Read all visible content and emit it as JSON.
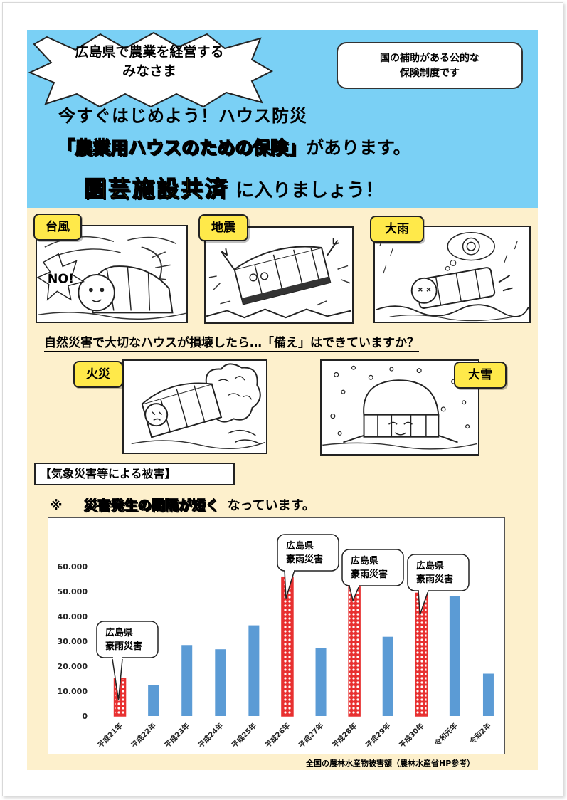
{
  "header": {
    "starburst_line1": "広島県で農業を経営する",
    "starburst_line2": "みなさま",
    "note_line1": "国の補助がある公的な",
    "note_line2": "保険制度です",
    "headline1": "今すぐはじめよう！ハウス防災",
    "headline2_highlight": "「農業用ハウスのための保険」",
    "headline2_rest": "があります。",
    "headline3_highlight": "園芸施設共済",
    "headline3_rest": "に入りましょう！"
  },
  "disasters": {
    "typhoon": "台風",
    "typhoon_no": "NO!",
    "earthquake": "地震",
    "heavy_rain": "大雨",
    "fire": "火災",
    "heavy_snow": "大雪"
  },
  "question": "自然災害で大切なハウスが損壊したら…「備え」はできていますか？",
  "section_label": "【気象災害等による被害】",
  "interval": {
    "mark": "※",
    "highlight": "災害発生の間隔が短く",
    "rest": "なっています。"
  },
  "chart_data": {
    "type": "bar",
    "categories": [
      "平成21年",
      "平成22年",
      "平成23年",
      "平成24年",
      "平成25年",
      "平成26年",
      "平成27年",
      "平成28年",
      "平成29年",
      "平成30年",
      "令和元年",
      "令和2年"
    ],
    "values": [
      15000,
      12500,
      28500,
      26800,
      36400,
      55800,
      27300,
      55000,
      31800,
      49300,
      48200,
      17000
    ],
    "highlighted": [
      true,
      false,
      false,
      false,
      false,
      true,
      false,
      true,
      false,
      true,
      false,
      false
    ],
    "yticks": [
      "0",
      "10.000",
      "20.000",
      "30.000",
      "40.000",
      "50.000",
      "60.000"
    ],
    "ylim": [
      0,
      60000
    ],
    "annotation_line1": "広島県",
    "annotation_line2": "豪雨災害",
    "colors": {
      "normal": "#5b9bd5",
      "highlight": "#e83030"
    }
  },
  "source": "全国の農林水産物被害額（農林水産省HP参考）"
}
